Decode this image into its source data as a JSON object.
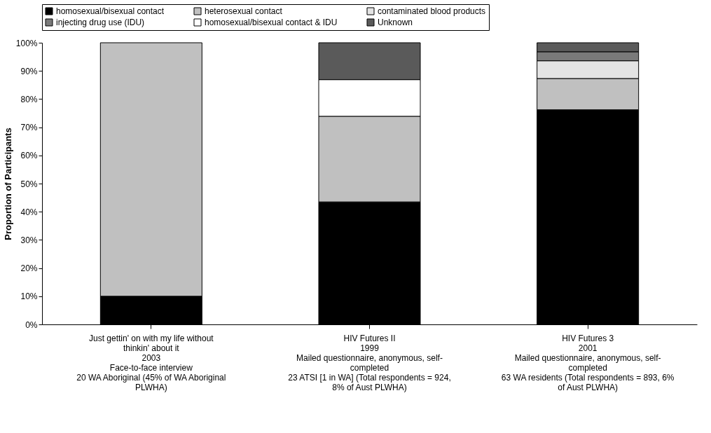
{
  "chart_data": {
    "type": "bar",
    "stacked": true,
    "ylabel": "Proportion of Participants",
    "categories": [
      "Just gettin' on with my life without thinkin' about it\n\n2003\n\nFace-to-face interview\n\n20 WA Aboriginal (45% of WA Aboriginal PLWHA)",
      "HIV Futures II\n\n1999\n\nMailed questionnaire, anonymous, self-completed\n\n23 ATSI [1 in WA] (Total respondents = 924, 8% of Aust PLWHA)",
      "HIV Futures 3\n\n2001\n\nMailed questionnaire, anonymous, self-completed\n\n63 WA residents (Total respondents = 893, 6% of Aust PLWHA)"
    ],
    "series": [
      {
        "name": "homosexual/bisexual contact",
        "color": "#000000",
        "values": [
          10,
          43.5,
          76.2
        ]
      },
      {
        "name": "heterosexual contact",
        "color": "#c0c0c0",
        "values": [
          90,
          30.4,
          11.1
        ]
      },
      {
        "name": "contaminated blood products",
        "color": "#e4e4e4",
        "values": [
          null,
          null,
          6.3
        ]
      },
      {
        "name": "injecting drug use (IDU)",
        "color": "#7a7a7a",
        "values": [
          null,
          null,
          3.2
        ]
      },
      {
        "name": "homosexual/bisexual contact & IDU",
        "color": "#ffffff",
        "values": [
          null,
          13.0,
          null
        ]
      },
      {
        "name": "Unknown",
        "color": "#5a5a5a",
        "values": [
          null,
          13.1,
          3.2
        ]
      }
    ],
    "ylim": [
      0,
      100
    ],
    "yticks": [
      {
        "value": 0,
        "label": "0%"
      },
      {
        "value": 10,
        "label": "10%"
      },
      {
        "value": 20,
        "label": "20%"
      },
      {
        "value": 30,
        "label": "30%"
      },
      {
        "value": 40,
        "label": "40%"
      },
      {
        "value": 50,
        "label": "50%"
      },
      {
        "value": 60,
        "label": "60%"
      },
      {
        "value": 70,
        "label": "70%"
      },
      {
        "value": 80,
        "label": "80%"
      },
      {
        "value": 90,
        "label": "90%"
      },
      {
        "value": 100,
        "label": "100%"
      }
    ],
    "grid": false,
    "legend": "top"
  }
}
